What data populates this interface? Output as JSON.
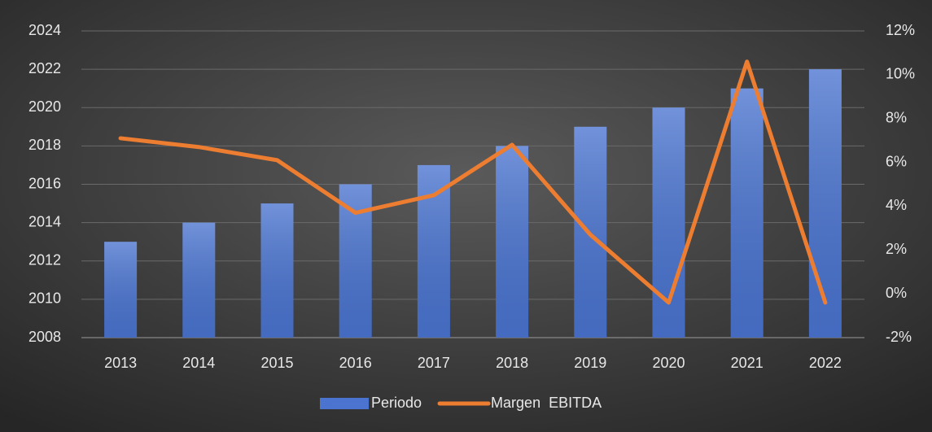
{
  "chart_data": {
    "type": "combo",
    "categories": [
      "2013",
      "2014",
      "2015",
      "2016",
      "2017",
      "2018",
      "2019",
      "2020",
      "2021",
      "2022"
    ],
    "series": [
      {
        "name": "Periodo",
        "type": "bar",
        "color": "#4a74d0",
        "values": [
          2013,
          2014,
          2015,
          2016,
          2017,
          2018,
          2019,
          2020,
          2021,
          2022
        ]
      },
      {
        "name": "Margen  EBITDA",
        "type": "line",
        "axis": "y2",
        "color": "#ed7d31",
        "values": [
          7.1,
          6.7,
          6.1,
          3.7,
          4.5,
          6.8,
          2.7,
          -0.4,
          10.6,
          -0.4
        ]
      }
    ],
    "ylim": [
      2008,
      2024
    ],
    "yticks": [
      2008,
      2010,
      2012,
      2014,
      2016,
      2018,
      2020,
      2022,
      2024
    ],
    "y2lim": [
      -2,
      12
    ],
    "y2ticks": [
      {
        "value": -2,
        "label": "-2%"
      },
      {
        "value": 0,
        "label": "0%"
      },
      {
        "value": 2,
        "label": "2%"
      },
      {
        "value": 4,
        "label": "4%"
      },
      {
        "value": 6,
        "label": "6%"
      },
      {
        "value": 8,
        "label": "8%"
      },
      {
        "value": 10,
        "label": "10%"
      },
      {
        "value": 12,
        "label": "12%"
      }
    ],
    "grid": true,
    "legend": "bottom"
  }
}
